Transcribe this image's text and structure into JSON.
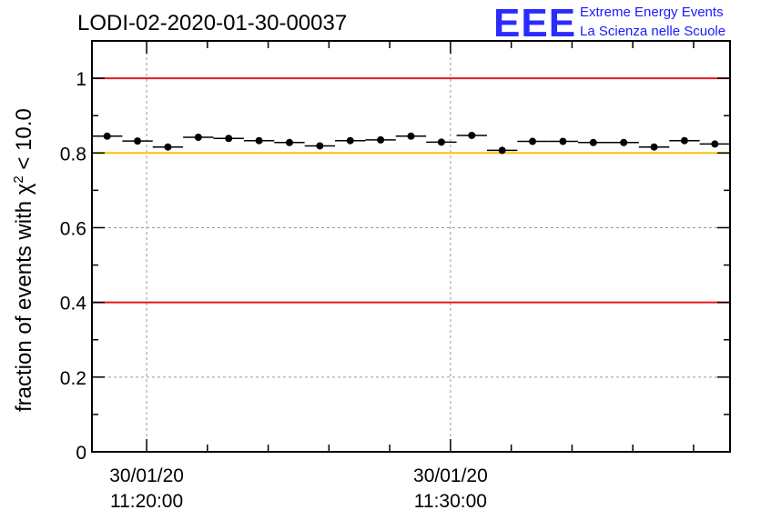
{
  "chart_data": {
    "type": "scatter",
    "title": "LODI-02-2020-01-30-00037",
    "ylabel_main": "fraction of events with χ",
    "ylabel_sup": "2",
    "ylabel_tail": " < 10.0",
    "xlabel": "",
    "ylim": [
      0,
      1.1
    ],
    "y_ticks": [
      "0",
      "0.2",
      "0.4",
      "0.6",
      "0.8",
      "1"
    ],
    "x_range_minutes": [
      0,
      21
    ],
    "x_tick_labels": [
      {
        "date": "30/01/20",
        "time": "11:20:00",
        "minute": 1.8
      },
      {
        "date": "30/01/20",
        "time": "11:30:00",
        "minute": 11.8
      }
    ],
    "points": [
      {
        "x": 0.5,
        "y": 0.845
      },
      {
        "x": 1.5,
        "y": 0.832
      },
      {
        "x": 2.5,
        "y": 0.816
      },
      {
        "x": 3.5,
        "y": 0.842
      },
      {
        "x": 4.5,
        "y": 0.839
      },
      {
        "x": 5.5,
        "y": 0.833
      },
      {
        "x": 6.5,
        "y": 0.828
      },
      {
        "x": 7.5,
        "y": 0.819
      },
      {
        "x": 8.5,
        "y": 0.833
      },
      {
        "x": 9.5,
        "y": 0.835
      },
      {
        "x": 10.5,
        "y": 0.845
      },
      {
        "x": 11.5,
        "y": 0.829
      },
      {
        "x": 12.5,
        "y": 0.847
      },
      {
        "x": 13.5,
        "y": 0.807
      },
      {
        "x": 14.5,
        "y": 0.831
      },
      {
        "x": 15.5,
        "y": 0.831
      },
      {
        "x": 16.5,
        "y": 0.828
      },
      {
        "x": 17.5,
        "y": 0.828
      },
      {
        "x": 18.5,
        "y": 0.816
      },
      {
        "x": 19.5,
        "y": 0.833
      },
      {
        "x": 20.5,
        "y": 0.824
      }
    ],
    "reference_lines": [
      {
        "y": 1.0,
        "color": "#e8191b"
      },
      {
        "y": 0.8,
        "color": "#ffc400"
      },
      {
        "y": 0.4,
        "color": "#e8191b"
      }
    ],
    "grid": true
  },
  "logo": {
    "letters": "EEE",
    "line1": "Extreme Energy Events",
    "line2": "La Scienza nelle Scuole",
    "color": "#1a1aff"
  }
}
